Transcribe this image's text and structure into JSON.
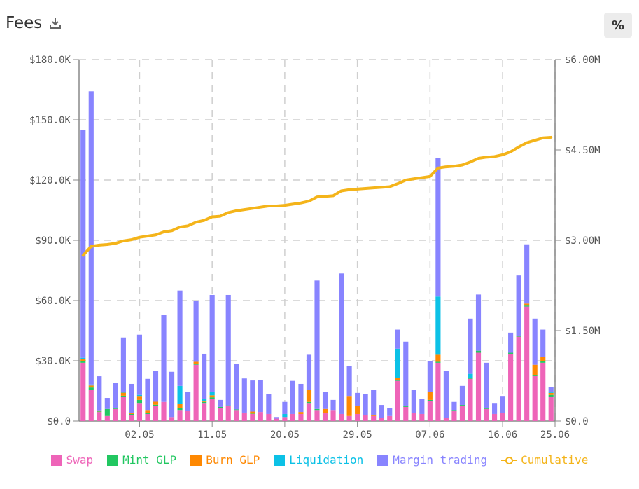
{
  "header": {
    "title": "Fees",
    "percent_label": "%"
  },
  "legend": [
    {
      "key": "swap",
      "label": "Swap",
      "color": "#ee64b8"
    },
    {
      "key": "mint",
      "label": "Mint GLP",
      "color": "#22c761"
    },
    {
      "key": "burn",
      "label": "Burn GLP",
      "color": "#fe8802"
    },
    {
      "key": "liquidation",
      "label": "Liquidation",
      "color": "#0cc1e6"
    },
    {
      "key": "margin",
      "label": "Margin trading",
      "color": "#8884ff"
    },
    {
      "key": "cumulative",
      "label": "Cumulative",
      "color": "#f4b41a"
    }
  ],
  "chart_data": {
    "type": "bar",
    "stacked": true,
    "grid": true,
    "x_ticks": [
      "02.05",
      "11.05",
      "20.05",
      "29.05",
      "07.06",
      "16.06",
      "25.06"
    ],
    "y_left": {
      "min": 0,
      "max": 180000,
      "ticks": [
        "$0.0",
        "$30.0K",
        "$60.0K",
        "$90.0K",
        "$120.0K",
        "$150.0K",
        "$180.0K"
      ]
    },
    "y_right": {
      "min": 0,
      "max": 6000000,
      "ticks": [
        "$0.0",
        "$1.50M",
        "$3.00M",
        "$4.50M",
        "$6.00M"
      ]
    },
    "series": [
      {
        "name": "Swap",
        "values": [
          29000,
          15500,
          4500,
          2500,
          6000,
          12000,
          3000,
          9000,
          3500,
          7500,
          9500,
          2000,
          5500,
          5000,
          28000,
          9000,
          11000,
          6500,
          7500,
          5500,
          4000,
          3500,
          4500,
          3500,
          1200,
          2000,
          3500,
          3500,
          9000,
          5500,
          4000,
          5500,
          3500,
          2500,
          3500,
          3000,
          2500,
          1500,
          2500,
          20000,
          7000,
          4000,
          3500,
          10000,
          29000,
          1500,
          5000,
          7500,
          21000,
          34000,
          6000,
          3500,
          4000,
          33500,
          42000,
          57000,
          22500,
          29000,
          12000
        ]
      },
      {
        "name": "Mint GLP",
        "values": [
          800,
          1200,
          300,
          3500,
          500,
          600,
          500,
          1500,
          500,
          600,
          0,
          0,
          1000,
          0,
          500,
          500,
          800,
          500,
          300,
          300,
          200,
          200,
          0,
          0,
          0,
          0,
          0,
          0,
          500,
          500,
          0,
          0,
          0,
          0,
          0,
          0,
          0,
          0,
          0,
          500,
          500,
          0,
          0,
          500,
          500,
          0,
          500,
          500,
          500,
          1000,
          500,
          0,
          0,
          500,
          500,
          500,
          500,
          1000,
          1000
        ]
      },
      {
        "name": "Burn GLP",
        "values": [
          1200,
          1000,
          500,
          0,
          0,
          1500,
          500,
          2000,
          1500,
          1500,
          0,
          0,
          2000,
          0,
          1000,
          500,
          1000,
          0,
          0,
          0,
          0,
          1000,
          0,
          0,
          0,
          0,
          0,
          1000,
          6000,
          0,
          2000,
          0,
          0,
          10000,
          4000,
          0,
          500,
          0,
          0,
          1000,
          0,
          0,
          0,
          4000,
          3500,
          0,
          0,
          0,
          0,
          0,
          0,
          0,
          0,
          0,
          0,
          1000,
          5000,
          2000,
          1000
        ]
      },
      {
        "name": "Liquidation",
        "values": [
          500,
          500,
          0,
          0,
          0,
          500,
          0,
          500,
          0,
          0,
          0,
          0,
          9000,
          0,
          0,
          1000,
          1500,
          0,
          0,
          0,
          0,
          0,
          0,
          0,
          0,
          1500,
          0,
          0,
          0,
          0,
          0,
          0,
          0,
          0,
          0,
          0,
          0,
          0,
          0,
          14500,
          0,
          0,
          0,
          0,
          29000,
          0,
          0,
          0,
          2000,
          0,
          0,
          0,
          0,
          0,
          0,
          0,
          0,
          0,
          500
        ]
      },
      {
        "name": "Margin trading",
        "values": [
          113500,
          146000,
          17000,
          5500,
          12500,
          27000,
          14500,
          30000,
          15500,
          15500,
          43500,
          22500,
          47500,
          9500,
          30500,
          22500,
          48500,
          3500,
          55000,
          22500,
          17000,
          15500,
          16000,
          10000,
          800,
          6000,
          16500,
          14000,
          17500,
          64000,
          8500,
          5000,
          70000,
          15000,
          6500,
          10500,
          12500,
          6500,
          4000,
          9500,
          32000,
          11500,
          7500,
          15500,
          69000,
          23500,
          4000,
          9500,
          27500,
          28000,
          22500,
          5500,
          8500,
          10000,
          30000,
          29500,
          23000,
          13500,
          2500
        ]
      },
      {
        "name": "Cumulative",
        "values": [
          2750000,
          2900000,
          2920000,
          2930000,
          2950000,
          2990000,
          3010000,
          3050000,
          3070000,
          3090000,
          3140000,
          3160000,
          3220000,
          3240000,
          3300000,
          3330000,
          3390000,
          3400000,
          3460000,
          3490000,
          3510000,
          3530000,
          3550000,
          3570000,
          3570000,
          3580000,
          3600000,
          3620000,
          3650000,
          3720000,
          3730000,
          3740000,
          3820000,
          3840000,
          3850000,
          3860000,
          3870000,
          3880000,
          3890000,
          3940000,
          4000000,
          4020000,
          4040000,
          4060000,
          4200000,
          4220000,
          4230000,
          4250000,
          4300000,
          4360000,
          4380000,
          4390000,
          4420000,
          4470000,
          4550000,
          4620000,
          4660000,
          4700000,
          4710000
        ]
      }
    ]
  }
}
